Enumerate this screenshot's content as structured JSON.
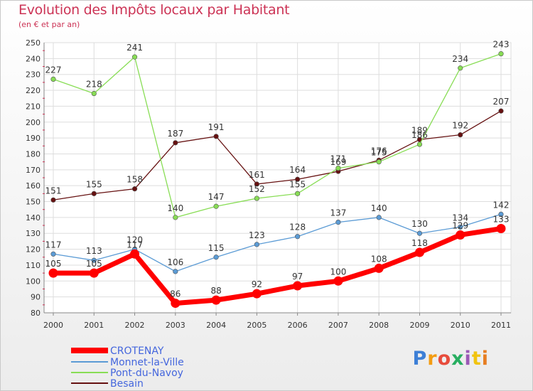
{
  "title": "Evolution des Impôts locaux par Habitant",
  "subtitle": "(en € et par an)",
  "logo": "Proxiti",
  "chart_data": {
    "type": "line",
    "ylim": [
      80,
      250
    ],
    "y_ticks": [
      "80",
      "90",
      "100",
      "110",
      "120",
      "130",
      "140",
      "150",
      "160",
      "170",
      "180",
      "190",
      "200",
      "210",
      "220",
      "230",
      "240",
      "250"
    ],
    "categories": [
      "2000",
      "2001",
      "2002",
      "2003",
      "2004",
      "2005",
      "2006",
      "2007",
      "2008",
      "2009",
      "2010",
      "2011"
    ],
    "grid": true,
    "legend_position": "bottom-left",
    "series": [
      {
        "name": "CROTENAY",
        "color": "#ff0000",
        "label_color": "#333333",
        "values": [
          105,
          105,
          117,
          86,
          88,
          92,
          97,
          100,
          108,
          118,
          129,
          133
        ],
        "labels": [
          "105",
          "105",
          "117",
          "86",
          "88",
          "92",
          "97",
          "100",
          "108",
          "118",
          "129",
          "133"
        ]
      },
      {
        "name": "Monnet-la-Ville",
        "color": "#5b9bd5",
        "label_color": "#333333",
        "values": [
          117,
          113,
          120,
          106,
          115,
          123,
          128,
          137,
          140,
          130,
          134,
          142
        ],
        "labels": [
          "117",
          "113",
          "120",
          "106",
          "115",
          "123",
          "128",
          "137",
          "140",
          "130",
          "134",
          "142"
        ]
      },
      {
        "name": "Pont-du-Navoy",
        "color": "#88dd55",
        "label_color": "#333333",
        "values": [
          227,
          218,
          241,
          140,
          147,
          152,
          155,
          171,
          175,
          186,
          234,
          243
        ],
        "labels": [
          "227",
          "218",
          "241",
          "140",
          "147",
          "152",
          "155",
          "171",
          "175",
          "186",
          "234",
          "243"
        ]
      },
      {
        "name": "Besain",
        "color": "#661111",
        "label_color": "#333333",
        "values": [
          151,
          155,
          158,
          187,
          191,
          161,
          164,
          169,
          176,
          189,
          192,
          207
        ],
        "labels": [
          "151",
          "155",
          "158",
          "187",
          "191",
          "161",
          "164",
          "169",
          "176",
          "189",
          "192",
          "207"
        ]
      }
    ]
  }
}
